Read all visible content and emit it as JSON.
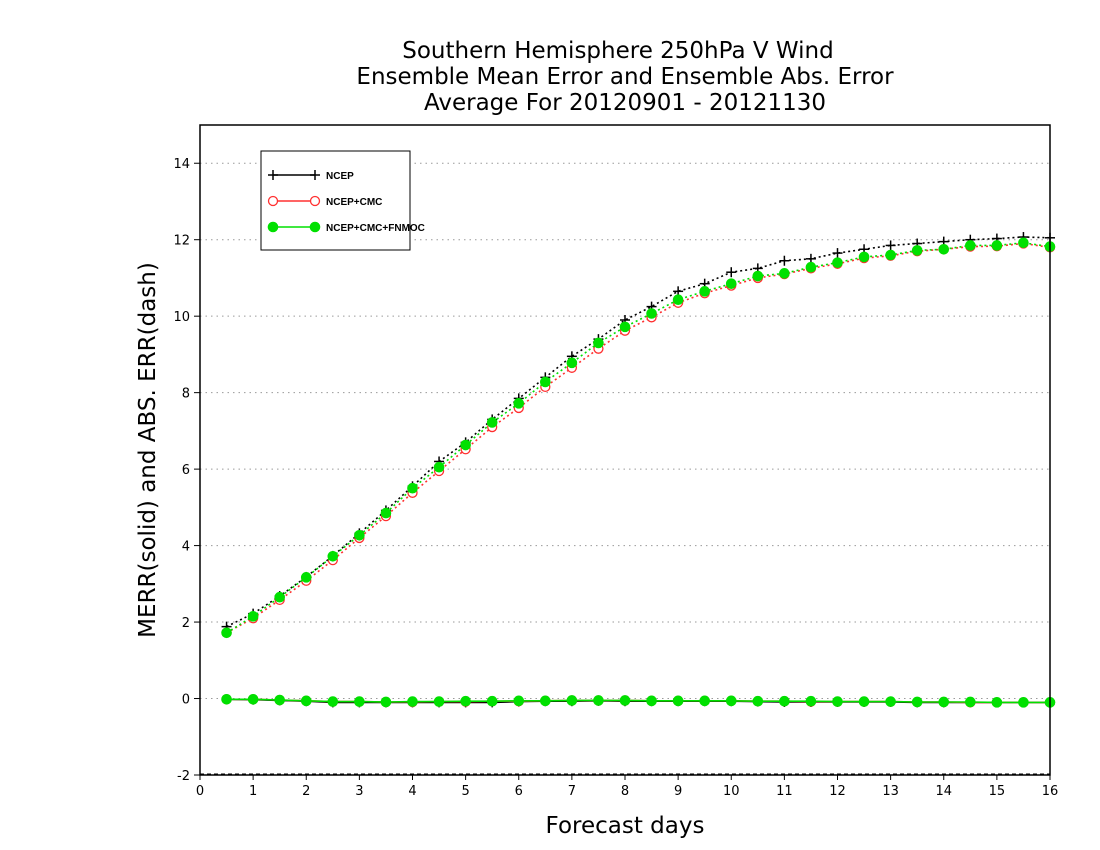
{
  "chart_data": {
    "type": "line",
    "title": [
      "Southern Hemisphere 250hPa V Wind",
      "Ensemble Mean Error and Ensemble Abs. Error",
      "Average For 20120901 - 20121130"
    ],
    "xlabel": "Forecast days",
    "ylabel": "MERR(solid) and ABS. ERR(dash)",
    "xlim": [
      0,
      16
    ],
    "ylim": [
      -2,
      15
    ],
    "xticks": [
      "0",
      "1",
      "2",
      "3",
      "4",
      "5",
      "6",
      "7",
      "8",
      "9",
      "10",
      "11",
      "12",
      "13",
      "14",
      "15",
      "16"
    ],
    "yticks": [
      "-2",
      "0",
      "2",
      "4",
      "6",
      "8",
      "10",
      "12",
      "14"
    ],
    "grid": "horizontal dotted",
    "legend_position": "top-left",
    "x": [
      0.5,
      1,
      1.5,
      2,
      2.5,
      3,
      3.5,
      4,
      4.5,
      5,
      5.5,
      6,
      6.5,
      7,
      7.5,
      8,
      8.5,
      9,
      9.5,
      10,
      10.5,
      11,
      11.5,
      12,
      12.5,
      13,
      13.5,
      14,
      14.5,
      15,
      15.5,
      16
    ],
    "series": [
      {
        "name": "NCEP",
        "color": "#000000",
        "marker": "plus",
        "abs_err": [
          1.88,
          2.22,
          2.68,
          3.18,
          3.73,
          4.32,
          4.92,
          5.55,
          6.2,
          6.7,
          7.3,
          7.85,
          8.4,
          8.95,
          9.4,
          9.9,
          10.25,
          10.65,
          10.85,
          11.15,
          11.25,
          11.45,
          11.5,
          11.65,
          11.75,
          11.85,
          11.9,
          11.95,
          12.0,
          12.03,
          12.07,
          12.05
        ],
        "mean_err": [
          -0.02,
          -0.03,
          -0.05,
          -0.07,
          -0.1,
          -0.1,
          -0.1,
          -0.1,
          -0.1,
          -0.1,
          -0.1,
          -0.08,
          -0.07,
          -0.07,
          -0.06,
          -0.07,
          -0.07,
          -0.07,
          -0.07,
          -0.07,
          -0.08,
          -0.09,
          -0.09,
          -0.09,
          -0.09,
          -0.09,
          -0.1,
          -0.1,
          -0.1,
          -0.1,
          -0.1,
          -0.1
        ]
      },
      {
        "name": "NCEP+CMC",
        "color": "#ff3030",
        "marker": "circle-open",
        "abs_err": [
          1.72,
          2.1,
          2.58,
          3.08,
          3.62,
          4.2,
          4.77,
          5.38,
          5.95,
          6.52,
          7.1,
          7.6,
          8.15,
          8.65,
          9.15,
          9.62,
          9.97,
          10.35,
          10.6,
          10.8,
          11.0,
          11.1,
          11.25,
          11.37,
          11.52,
          11.58,
          11.7,
          11.75,
          11.82,
          11.83,
          11.9,
          11.8
        ],
        "mean_err": [
          -0.02,
          -0.02,
          -0.04,
          -0.06,
          -0.08,
          -0.08,
          -0.09,
          -0.09,
          -0.08,
          -0.08,
          -0.07,
          -0.07,
          -0.06,
          -0.05,
          -0.05,
          -0.05,
          -0.06,
          -0.06,
          -0.06,
          -0.06,
          -0.07,
          -0.07,
          -0.08,
          -0.08,
          -0.08,
          -0.08,
          -0.09,
          -0.09,
          -0.1,
          -0.1,
          -0.1,
          -0.1
        ]
      },
      {
        "name": "NCEP+CMC+FNMOC",
        "color": "#00e000",
        "marker": "circle-filled",
        "abs_err": [
          1.72,
          2.15,
          2.65,
          3.17,
          3.72,
          4.27,
          4.85,
          5.5,
          6.05,
          6.63,
          7.22,
          7.72,
          8.28,
          8.78,
          9.3,
          9.72,
          10.07,
          10.43,
          10.65,
          10.85,
          11.05,
          11.12,
          11.28,
          11.4,
          11.55,
          11.6,
          11.72,
          11.75,
          11.85,
          11.85,
          11.92,
          11.82
        ],
        "mean_err": [
          -0.02,
          -0.02,
          -0.04,
          -0.06,
          -0.08,
          -0.08,
          -0.09,
          -0.08,
          -0.08,
          -0.07,
          -0.07,
          -0.06,
          -0.06,
          -0.05,
          -0.05,
          -0.05,
          -0.06,
          -0.06,
          -0.06,
          -0.06,
          -0.07,
          -0.07,
          -0.07,
          -0.08,
          -0.08,
          -0.08,
          -0.09,
          -0.09,
          -0.09,
          -0.1,
          -0.1,
          -0.1
        ]
      }
    ]
  }
}
